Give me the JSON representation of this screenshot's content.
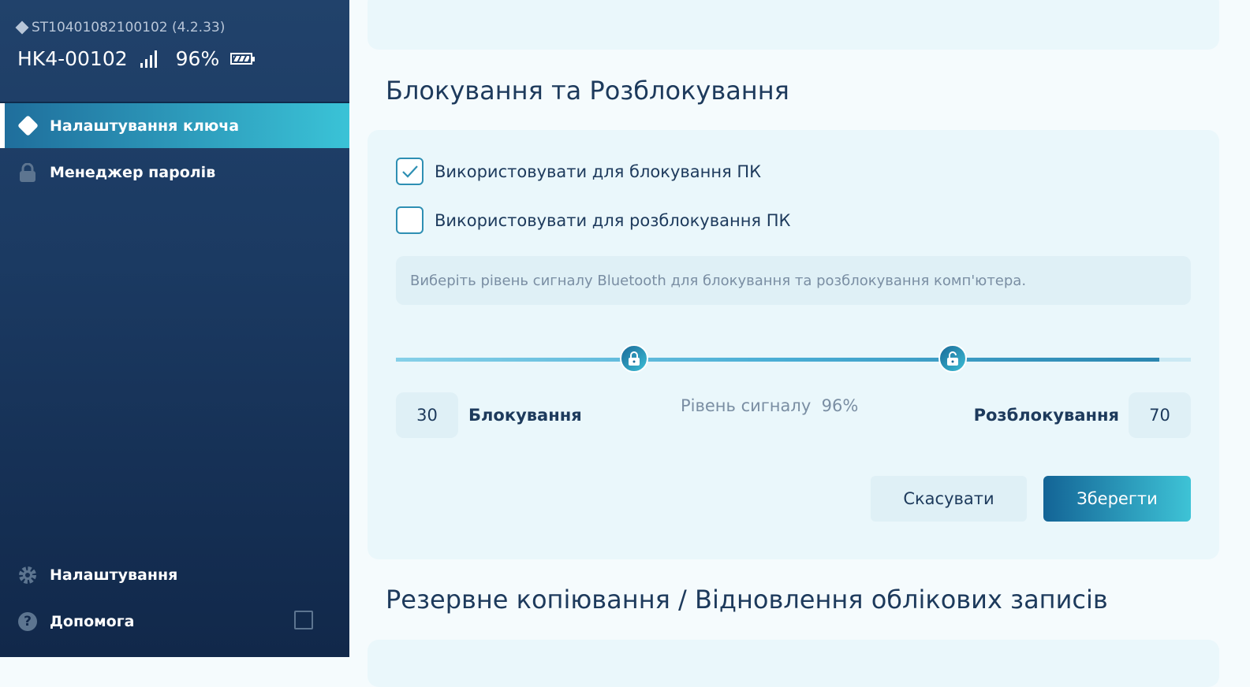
{
  "device": {
    "serial": "ST10401082100102 (4.2.33)",
    "name": "HK4-00102",
    "signal_percent": "96%",
    "battery_icon": "battery-icon"
  },
  "sidebar": {
    "items": [
      {
        "label": "Налаштування ключа",
        "icon": "key-info-icon",
        "active": true
      },
      {
        "label": "Менеджер паролів",
        "icon": "lock-icon"
      }
    ],
    "bottom": [
      {
        "label": "Налаштування",
        "icon": "gear-icon"
      },
      {
        "label": "Допомога",
        "icon": "help-icon"
      }
    ]
  },
  "main": {
    "lock_section": {
      "title": "Блокування та Розблокування",
      "lock_checkbox": {
        "label": "Використовувати для блокування ПК",
        "checked": true
      },
      "unlock_checkbox": {
        "label": "Використовувати для розблокування ПК",
        "checked": false
      },
      "info": "Виберіть рівень сигналу Bluetooth для блокування та розблокування комп'ютера.",
      "slider": {
        "lock_value": 30,
        "unlock_value": 70,
        "signal_level": 96
      },
      "lock_value": "30",
      "lock_label": "Блокування",
      "signal_text": "Рівень сигналу  96%",
      "unlock_label": "Розблокування",
      "unlock_value": "70",
      "cancel": "Скасувати",
      "save": "Зберегти"
    },
    "backup_section": {
      "title": "Резервне копіювання / Відновлення облікових записів"
    }
  },
  "colors": {
    "accent": "#2e8fb3",
    "sidebar": "#1b3a62"
  }
}
